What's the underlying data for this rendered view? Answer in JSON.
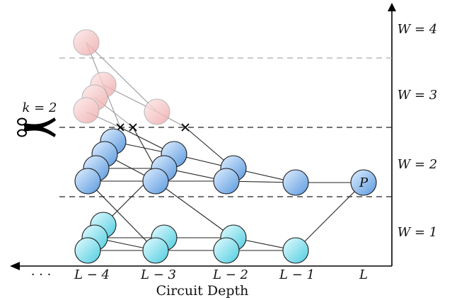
{
  "cut_label": "k = 2",
  "axis_title": "Circuit Depth",
  "ellipsis": "· · ·",
  "depth_labels": [
    "L − 4",
    "L − 3",
    "L − 2",
    "L − 1",
    "L"
  ],
  "width_labels": [
    "W = 1",
    "W = 2",
    "W = 3",
    "W = 4"
  ],
  "output_node_label": "P",
  "colors": {
    "cyan_node": "#7fe0ee",
    "blue_node": "#7fb2ea",
    "pink_node": "#f3b8b8",
    "line": "#222222",
    "dashed": "#333333"
  }
}
